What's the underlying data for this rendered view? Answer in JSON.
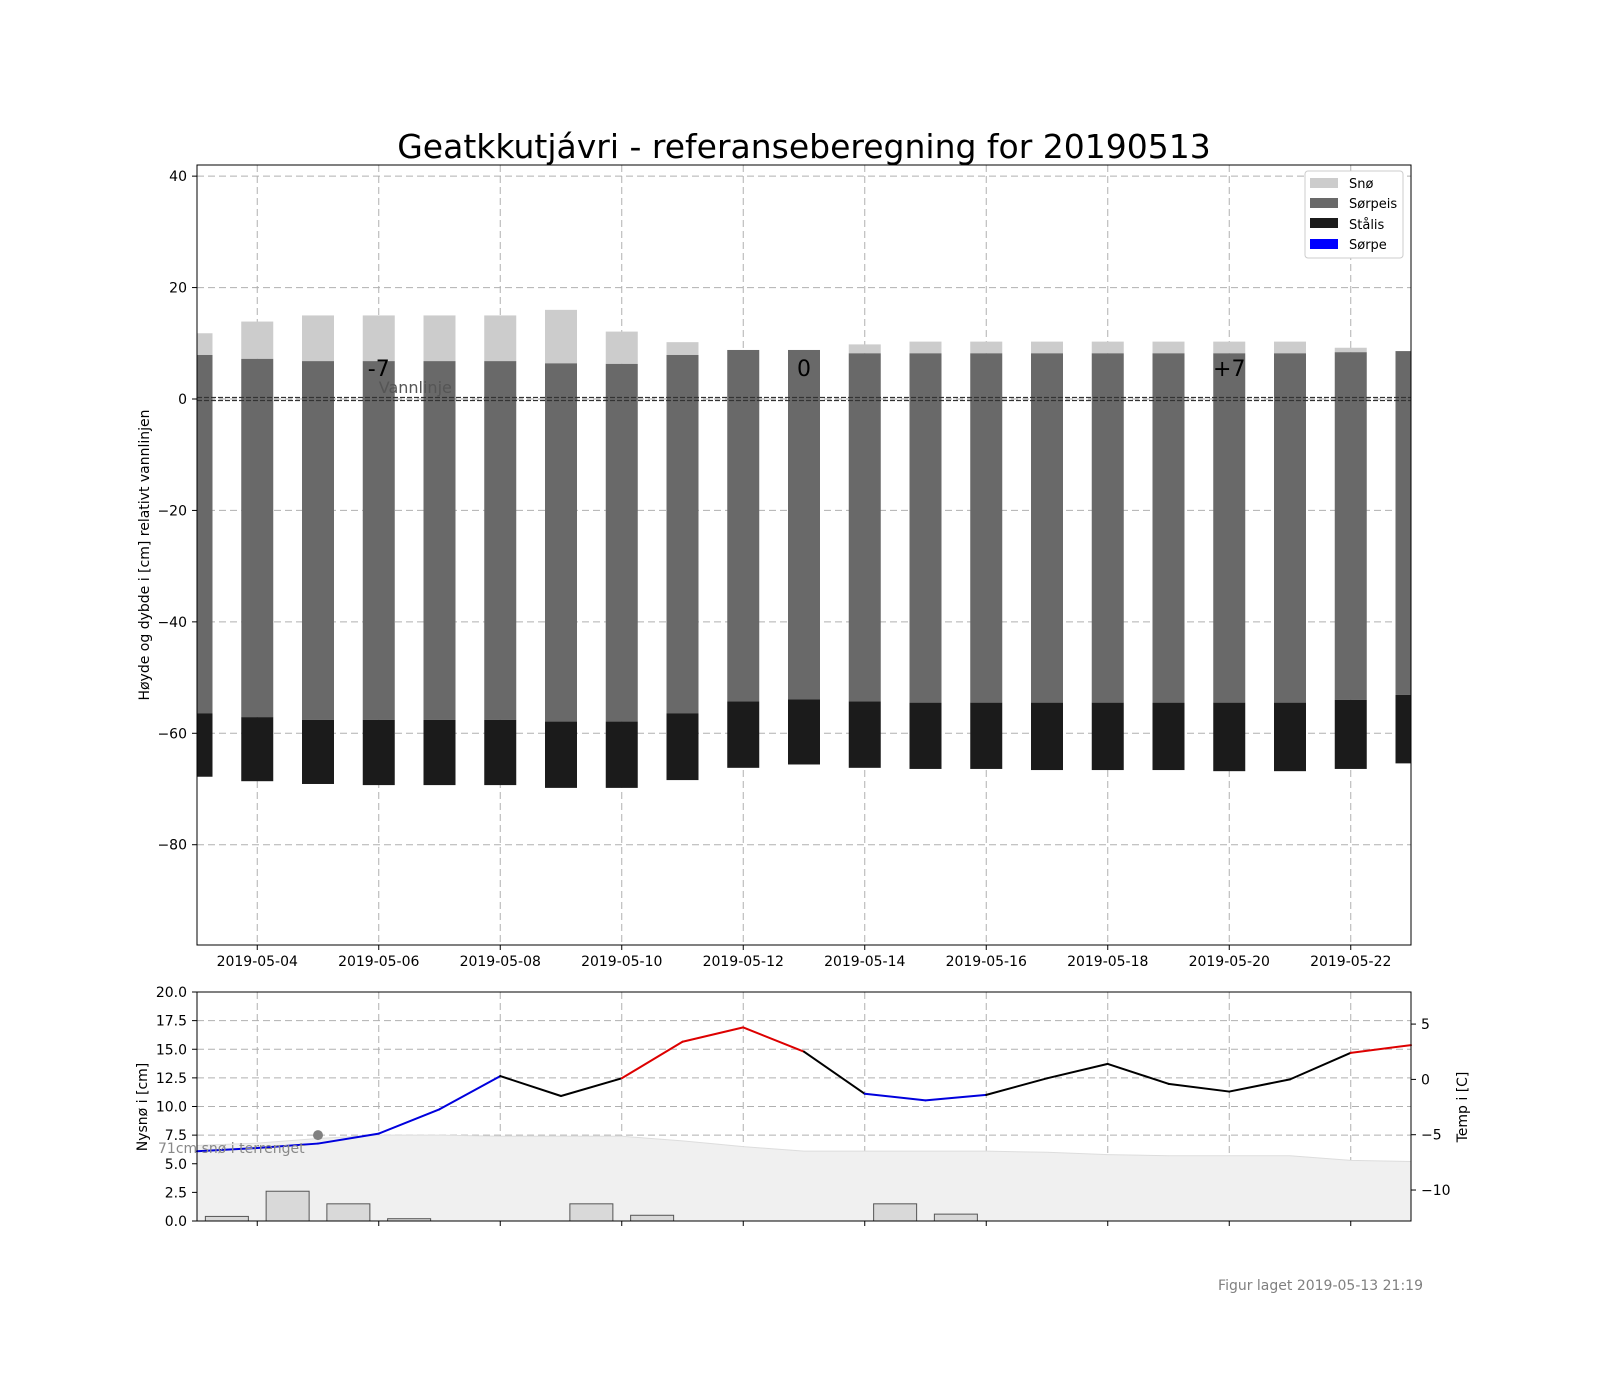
{
  "title": "Geatkkutjávri - referanseberegning for 20190513",
  "footer": "Figur laget 2019-05-13 21:19",
  "colors": {
    "sno": "#cccccc",
    "sorpeis": "#696969",
    "stalis": "#1b1b1b",
    "sorpe": "#0000ff",
    "temp_warm": "#dd0000",
    "temp_cold": "#0000dd",
    "temp_mid": "#000000"
  },
  "chart_data": [
    {
      "type": "bar",
      "name": "ice-profile",
      "ylabel": "Høyde og dybde i [cm] relativt vannlinjen",
      "ylim": [
        -98,
        42
      ],
      "yticks": [
        40,
        20,
        0,
        -20,
        -40,
        -60,
        -80
      ],
      "ytick_labels": [
        "40",
        "20",
        "0",
        "−20",
        "−40",
        "−60",
        "−80"
      ],
      "xtick_labels": [
        "2019-05-04",
        "2019-05-06",
        "2019-05-08",
        "2019-05-10",
        "2019-05-12",
        "2019-05-14",
        "2019-05-16",
        "2019-05-18",
        "2019-05-20",
        "2019-05-22"
      ],
      "grid": true,
      "legend_position": "top-right",
      "legend": [
        "Snø",
        "Sørpeis",
        "Stålis",
        "Sørpe"
      ],
      "day_labels": [
        {
          "text": "-7",
          "date": "2019-05-06"
        },
        {
          "text": "0",
          "date": "2019-05-13"
        },
        {
          "text": "+7",
          "date": "2019-05-20"
        }
      ],
      "waterline_label": "Vannlinje",
      "dates": [
        "2019-05-03",
        "2019-05-04",
        "2019-05-05",
        "2019-05-06",
        "2019-05-07",
        "2019-05-08",
        "2019-05-09",
        "2019-05-10",
        "2019-05-11",
        "2019-05-12",
        "2019-05-13",
        "2019-05-14",
        "2019-05-15",
        "2019-05-16",
        "2019-05-17",
        "2019-05-18",
        "2019-05-19",
        "2019-05-20",
        "2019-05-21",
        "2019-05-22",
        "2019-05-23"
      ],
      "series": [
        {
          "name": "Snø",
          "top": [
            11.8,
            13.9,
            15.0,
            15.0,
            15.0,
            15.0,
            16.0,
            12.1,
            10.2,
            8.8,
            8.8,
            9.8,
            10.3,
            10.3,
            10.3,
            10.3,
            10.3,
            10.3,
            10.3,
            9.2,
            8.6
          ],
          "bottom": [
            7.9,
            7.2,
            6.8,
            6.8,
            6.8,
            6.8,
            6.4,
            6.3,
            7.9,
            8.8,
            8.8,
            8.2,
            8.2,
            8.2,
            8.2,
            8.2,
            8.2,
            8.2,
            8.2,
            8.4,
            8.6
          ]
        },
        {
          "name": "Sørpeis",
          "top": [
            7.9,
            7.2,
            6.8,
            6.8,
            6.8,
            6.8,
            6.4,
            6.3,
            7.9,
            8.8,
            8.8,
            8.2,
            8.2,
            8.2,
            8.2,
            8.2,
            8.2,
            8.2,
            8.2,
            8.4,
            8.6
          ],
          "bottom": [
            -56.4,
            -57.1,
            -57.6,
            -57.6,
            -57.6,
            -57.6,
            -57.9,
            -57.9,
            -56.4,
            -54.3,
            -53.9,
            -54.3,
            -54.5,
            -54.5,
            -54.5,
            -54.5,
            -54.5,
            -54.5,
            -54.5,
            -54.0,
            -53.1
          ]
        },
        {
          "name": "Stålis",
          "top": [
            -56.4,
            -57.1,
            -57.6,
            -57.6,
            -57.6,
            -57.6,
            -57.9,
            -57.9,
            -56.4,
            -54.3,
            -53.9,
            -54.3,
            -54.5,
            -54.5,
            -54.5,
            -54.5,
            -54.5,
            -54.5,
            -54.5,
            -54.0,
            -53.1
          ],
          "bottom": [
            -67.8,
            -68.6,
            -69.1,
            -69.3,
            -69.3,
            -69.3,
            -69.8,
            -69.8,
            -68.4,
            -66.2,
            -65.6,
            -66.2,
            -66.4,
            -66.4,
            -66.6,
            -66.6,
            -66.6,
            -66.8,
            -66.8,
            -66.4,
            -65.4
          ]
        },
        {
          "name": "Sørpe",
          "top": [],
          "bottom": []
        }
      ]
    },
    {
      "type": "bar+line",
      "name": "weather",
      "ylabel": "Nysnø i [cm]",
      "y2label": "Temp i [C]",
      "ylim": [
        0,
        20
      ],
      "yticks": [
        0,
        2.5,
        5,
        7.5,
        10,
        12.5,
        15,
        17.5,
        20
      ],
      "ytick_labels": [
        "0.0",
        "2.5",
        "5.0",
        "7.5",
        "10.0",
        "12.5",
        "15.0",
        "17.5",
        "20.0"
      ],
      "y2lim": [
        -12.8,
        7.9
      ],
      "y2ticks": [
        5,
        0,
        -5,
        -10
      ],
      "y2tick_labels": [
        "5",
        "0",
        "−5",
        "−10"
      ],
      "grid": true,
      "terrain_label": "71cm snø i terrenget",
      "terrain_snow_cm": [
        6.6,
        6.8,
        7.2,
        7.5,
        7.5,
        7.4,
        7.4,
        7.4,
        7.0,
        6.5,
        6.1,
        6.1,
        6.1,
        6.1,
        6.0,
        5.8,
        5.7,
        5.7,
        5.7,
        5.3,
        5.2
      ],
      "terrain_dates": [
        "2019-05-03",
        "2019-05-04",
        "2019-05-05",
        "2019-05-06",
        "2019-05-07",
        "2019-05-08",
        "2019-05-09",
        "2019-05-10",
        "2019-05-11",
        "2019-05-12",
        "2019-05-13",
        "2019-05-14",
        "2019-05-15",
        "2019-05-16",
        "2019-05-17",
        "2019-05-18",
        "2019-05-19",
        "2019-05-20",
        "2019-05-21",
        "2019-05-22",
        "2019-05-23"
      ],
      "new_snow_dates": [
        "2019-05-03",
        "2019-05-04",
        "2019-05-05",
        "2019-05-06",
        "2019-05-09",
        "2019-05-10",
        "2019-05-14",
        "2019-05-15"
      ],
      "new_snow_cm": [
        0.4,
        2.6,
        1.5,
        0.2,
        1.5,
        0.5,
        1.5,
        0.6
      ],
      "new_snow_point": {
        "date": "2019-05-05",
        "value": 7.5
      },
      "temp_dates": [
        "2019-05-03",
        "2019-05-04",
        "2019-05-05",
        "2019-05-06",
        "2019-05-07",
        "2019-05-08",
        "2019-05-09",
        "2019-05-10",
        "2019-05-11",
        "2019-05-12",
        "2019-05-13",
        "2019-05-14",
        "2019-05-15",
        "2019-05-16",
        "2019-05-17",
        "2019-05-18",
        "2019-05-19",
        "2019-05-20",
        "2019-05-21",
        "2019-05-22",
        "2019-05-23"
      ],
      "temp_c": [
        -6.5,
        -6.2,
        -5.8,
        -4.9,
        -2.7,
        0.3,
        -1.5,
        0.1,
        3.4,
        4.7,
        2.5,
        -1.3,
        -1.9,
        -1.4,
        0.1,
        1.4,
        -0.4,
        -1.1,
        0.0,
        2.4,
        3.1
      ]
    }
  ]
}
